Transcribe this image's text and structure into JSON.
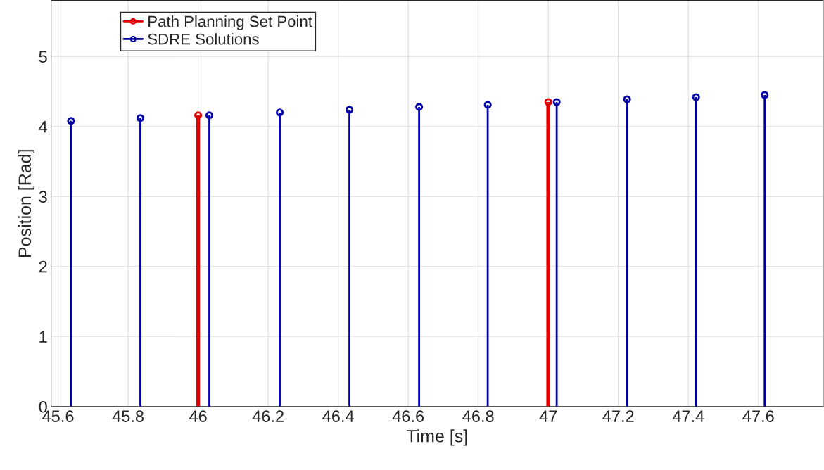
{
  "chart_data": {
    "type": "lollipop",
    "xlabel": "Time [s]",
    "ylabel": "Position [Rad]",
    "xlim": [
      45.58,
      47.785
    ],
    "xticks": [
      45.6,
      45.8,
      46,
      46.2,
      46.4,
      46.6,
      46.8,
      47,
      47.2,
      47.4,
      47.6
    ],
    "ylim": [
      0,
      5.8
    ],
    "yticks": [
      0,
      1,
      2,
      3,
      4,
      5
    ],
    "grid": true,
    "legend": "top left",
    "marker": "circle",
    "series": [
      {
        "name": "Path Planning Set Point",
        "color": "#e00000",
        "x": [
          46,
          47
        ],
        "values": [
          4.16,
          4.35
        ]
      },
      {
        "name": "SDRE Solutions",
        "color": "#0000a8",
        "x": [
          45.637,
          45.835,
          46.032,
          46.233,
          46.432,
          46.631,
          46.827,
          47.024,
          47.225,
          47.422,
          47.618
        ],
        "values": [
          4.08,
          4.12,
          4.16,
          4.2,
          4.24,
          4.28,
          4.31,
          4.35,
          4.39,
          4.42,
          4.45
        ]
      }
    ]
  }
}
